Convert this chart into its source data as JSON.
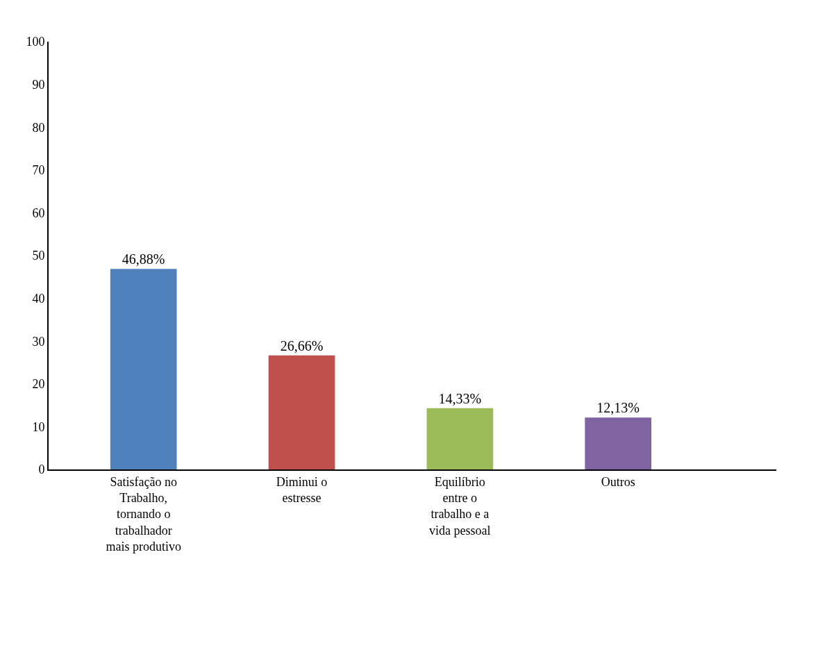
{
  "chart_data": {
    "type": "bar",
    "categories": [
      "Satisfação no Trabalho, tornando o trabalhador mais produtivo",
      "Diminui o estresse",
      "Equilíbrio entre o trabalho e a vida pessoal",
      "Outros"
    ],
    "values": [
      46.88,
      26.66,
      14.33,
      12.13
    ],
    "colors": [
      "#4f81bd",
      "#c0504d",
      "#9bbb59",
      "#8064a2"
    ],
    "value_labels": [
      "46,88%",
      "26,66%",
      "14,33%",
      "12,13%"
    ],
    "ylim": [
      0,
      100
    ],
    "yticks": [
      0,
      10,
      20,
      30,
      40,
      50,
      60,
      70,
      80,
      90,
      100
    ],
    "grid": false
  }
}
